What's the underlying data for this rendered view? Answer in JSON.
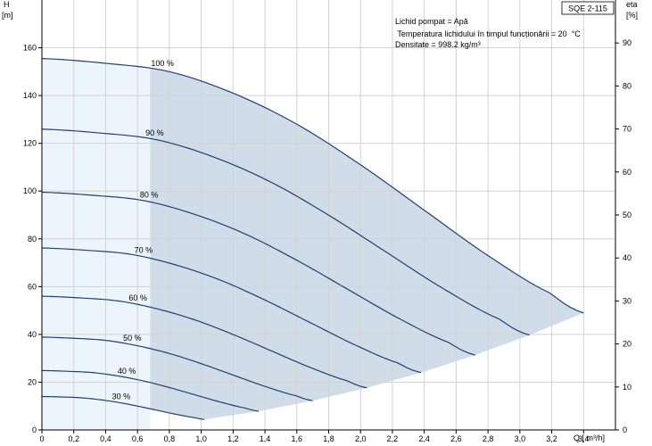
{
  "chart_data": {
    "type": "line",
    "title": "",
    "model_label": "SQE 2-115",
    "xlabel": "Q [ m³/h]",
    "ylabel": "H",
    "ylabel_unit": "[m]",
    "y2label": "eta",
    "y2label_unit": "[%]",
    "xlim": [
      0,
      3.6
    ],
    "ylim": [
      0,
      180
    ],
    "y2lim": [
      0,
      100
    ],
    "xticks": [
      "0",
      "0,2",
      "0,4",
      "0,6",
      "0,8",
      "1,0",
      "1,2",
      "1,4",
      "1,6",
      "1,8",
      "2,0",
      "2,2",
      "2,4",
      "2,6",
      "2,8",
      "3,0",
      "3,2",
      "3,4"
    ],
    "yticks": [
      "0",
      "20",
      "40",
      "60",
      "80",
      "100",
      "120",
      "140",
      "160"
    ],
    "y2ticks": [
      "0",
      "10",
      "20",
      "30",
      "40",
      "50",
      "60",
      "70",
      "80",
      "90"
    ],
    "grid": true,
    "info_lines": [
      "Lichid pompat = Apă",
      " Temperatura lichidului în timpul funcționării = 20  °C",
      "Densitate = 998.2  kg/m³"
    ],
    "recommended_range_start_q": 0.68,
    "series": [
      {
        "name": "100 %",
        "speed": 1.0
      },
      {
        "name": "90 %",
        "speed": 0.9
      },
      {
        "name": "80 %",
        "speed": 0.8
      },
      {
        "name": "70 %",
        "speed": 0.7
      },
      {
        "name": "60 %",
        "speed": 0.6
      },
      {
        "name": "50 %",
        "speed": 0.5
      },
      {
        "name": "40 %",
        "speed": 0.4
      },
      {
        "name": "30 %",
        "speed": 0.3
      }
    ],
    "base_curve": {
      "q": [
        0,
        0.4,
        0.8,
        1.2,
        1.6,
        2.0,
        2.4,
        2.8,
        3.2,
        3.4
      ],
      "h": [
        155.5,
        153.5,
        150,
        141,
        128,
        111,
        92,
        73,
        57,
        49
      ]
    }
  },
  "colors": {
    "operating_region": "#d0dde8",
    "low_flow_region": "#ecf4fc",
    "curve": "#1f3f73",
    "grid": "#d2d2d2"
  }
}
